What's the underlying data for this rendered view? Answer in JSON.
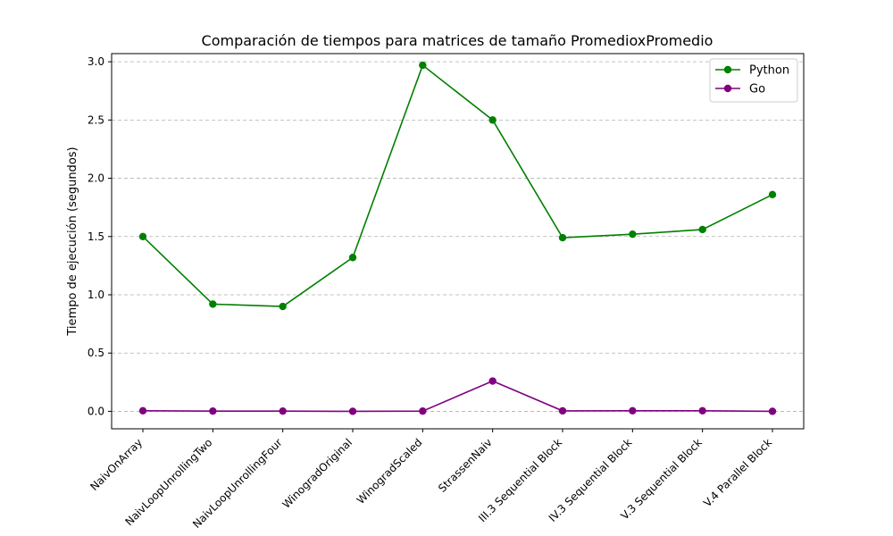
{
  "chart_data": {
    "type": "line",
    "title": "Comparación de tiempos para matrices de tamaño PromedioxPromedio",
    "xlabel": "",
    "ylabel": "Tiempo de ejecución (segundos)",
    "categories": [
      "NaivOnArray",
      "NaivLoopUnrollingTwo",
      "NaivLoopUnrollingFour",
      "WinogradOriginal",
      "WinogradScaled",
      "StrassenNaiv",
      "III.3 Sequential Block",
      "IV.3 Sequential Block",
      "V.3 Sequential Block",
      "V.4 Parallel Block"
    ],
    "ylim": [
      -0.15,
      3.07
    ],
    "yticks": [
      0.0,
      0.5,
      1.0,
      1.5,
      2.0,
      2.5,
      3.0
    ],
    "ytick_labels": [
      "0.0",
      "0.5",
      "1.0",
      "1.5",
      "2.0",
      "2.5",
      "3.0"
    ],
    "grid": "y-dashed",
    "legend_position": "top-right",
    "series": [
      {
        "name": "Python",
        "color": "#008000",
        "marker": "circle",
        "values": [
          1.5,
          0.92,
          0.9,
          1.32,
          2.97,
          2.5,
          1.49,
          1.52,
          1.56,
          1.86
        ]
      },
      {
        "name": "Go",
        "color": "#800080",
        "marker": "circle",
        "values": [
          0.005,
          0.002,
          0.002,
          0.0,
          0.002,
          0.26,
          0.004,
          0.005,
          0.005,
          0.0
        ]
      }
    ]
  }
}
